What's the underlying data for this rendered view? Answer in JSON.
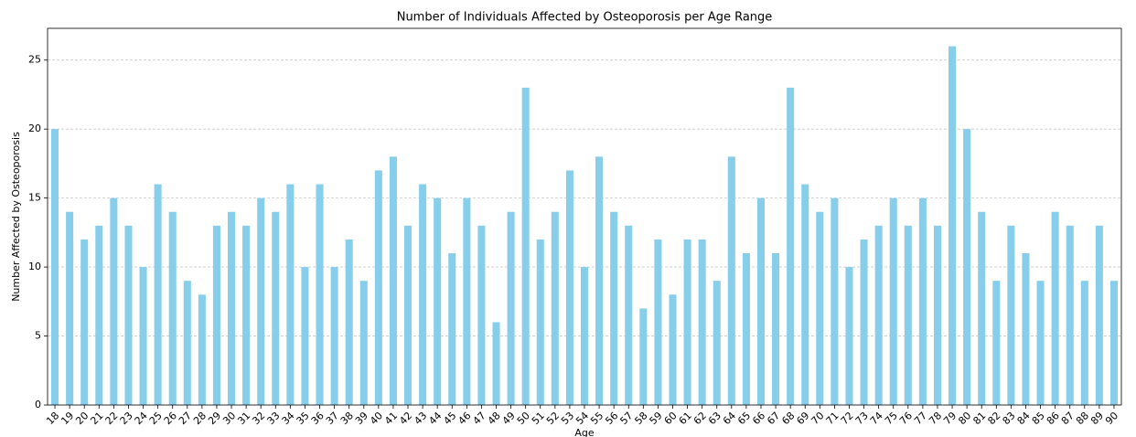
{
  "chart_data": {
    "type": "bar",
    "title": "Number of Individuals Affected by Osteoporosis per Age Range",
    "x_label": "Age",
    "y_label": "Number Affected by Osteoporosis",
    "categories": [
      "18",
      "19",
      "20",
      "21",
      "22",
      "23",
      "24",
      "25",
      "26",
      "27",
      "28",
      "29",
      "30",
      "31",
      "32",
      "33",
      "34",
      "35",
      "36",
      "37",
      "38",
      "39",
      "40",
      "41",
      "42",
      "43",
      "44",
      "45",
      "46",
      "47",
      "48",
      "49",
      "50",
      "51",
      "52",
      "53",
      "54",
      "55",
      "56",
      "57",
      "58",
      "59",
      "60",
      "61",
      "62",
      "63",
      "64",
      "65",
      "66",
      "67",
      "68",
      "69",
      "70",
      "71",
      "72",
      "73",
      "74",
      "75",
      "76",
      "77",
      "78",
      "79",
      "80",
      "81",
      "82",
      "83",
      "84",
      "85",
      "86",
      "87",
      "88",
      "89",
      "90"
    ],
    "values": [
      20,
      14,
      12,
      13,
      15,
      13,
      10,
      16,
      14,
      9,
      8,
      13,
      14,
      13,
      15,
      14,
      16,
      10,
      16,
      10,
      12,
      9,
      17,
      18,
      13,
      16,
      15,
      11,
      15,
      13,
      6,
      14,
      23,
      12,
      14,
      17,
      10,
      18,
      14,
      13,
      7,
      12,
      8,
      12,
      12,
      9,
      18,
      11,
      15,
      11,
      23,
      16,
      14,
      15,
      10,
      12,
      13,
      15,
      13,
      15,
      13,
      26,
      20,
      14,
      9,
      13,
      11,
      9,
      14,
      13,
      9,
      13,
      9
    ],
    "color": "#87ceeb",
    "ylim": [
      0,
      27.3
    ],
    "yticks": [
      0,
      5,
      10,
      15,
      20,
      25
    ],
    "grid": true
  }
}
